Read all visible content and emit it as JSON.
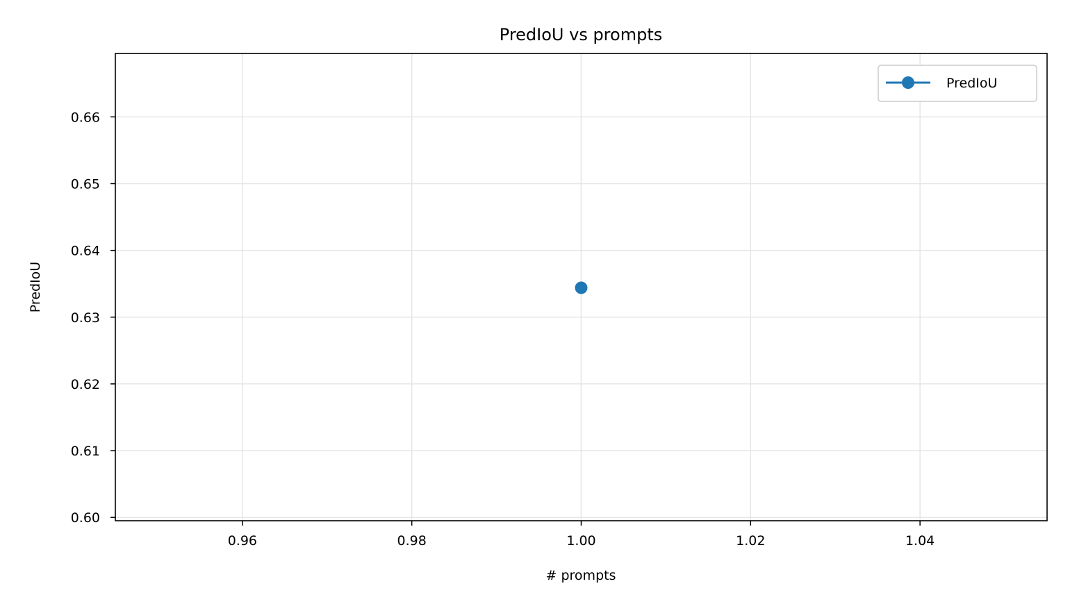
{
  "chart_data": {
    "type": "line",
    "title": "PredIoU vs prompts",
    "xlabel": "# prompts",
    "ylabel": "PredIoU",
    "xlim": [
      0.945,
      1.055
    ],
    "ylim": [
      0.5995,
      0.6695
    ],
    "x_ticks": [
      0.96,
      0.98,
      1.0,
      1.02,
      1.04
    ],
    "x_tick_labels": [
      "0.96",
      "0.98",
      "1.00",
      "1.02",
      "1.04"
    ],
    "y_ticks": [
      0.6,
      0.61,
      0.62,
      0.63,
      0.64,
      0.65,
      0.66
    ],
    "y_tick_labels": [
      "0.60",
      "0.61",
      "0.62",
      "0.63",
      "0.64",
      "0.65",
      "0.66"
    ],
    "grid": true,
    "legend_position": "top-right",
    "series": [
      {
        "name": "PredIoU",
        "color": "#1f77b4",
        "marker": "circle",
        "x": [
          1.0
        ],
        "y": [
          0.6344
        ]
      }
    ]
  }
}
